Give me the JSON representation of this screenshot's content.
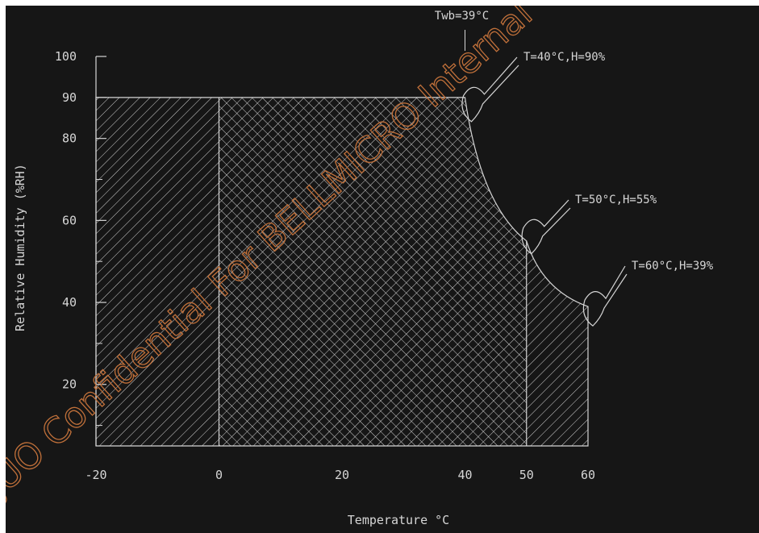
{
  "chart_data": {
    "type": "area",
    "xlabel": "Temperature °C",
    "ylabel": "Relative Humidity (%RH)",
    "xlim": [
      -20,
      60
    ],
    "ylim": [
      5,
      100
    ],
    "x_ticks": [
      -20,
      0,
      20,
      40,
      50,
      60
    ],
    "y_ticks": [
      100,
      90,
      80,
      60,
      40,
      20
    ],
    "regions": [
      {
        "name": "",
        "hatch": "single-diagonal",
        "x_range": [
          -20,
          60
        ],
        "boundary": [
          [
            -20,
            90
          ],
          [
            40,
            90
          ],
          [
            50,
            55
          ],
          [
            60,
            39
          ],
          [
            60,
            5
          ],
          [
            -20,
            5
          ]
        ]
      },
      {
        "name": "",
        "hatch": "cross-hatch",
        "x_range": [
          0,
          50
        ],
        "boundary": [
          [
            0,
            90
          ],
          [
            40,
            90
          ],
          [
            50,
            55
          ],
          [
            50,
            5
          ],
          [
            0,
            5
          ]
        ]
      }
    ],
    "annotations": [
      {
        "text": "Twb=39°C",
        "x": 40,
        "y": 100
      },
      {
        "text": "T=40°C,H=90%",
        "x": 40,
        "y": 90
      },
      {
        "text": "T=50°C,H=55%",
        "x": 50,
        "y": 55
      },
      {
        "text": "T=60°C,H=39%",
        "x": 60,
        "y": 39
      }
    ]
  },
  "watermark": "JUO Confidential For BELLMICRO Internal Use",
  "colors": {
    "background": "#161616",
    "foreground": "#d6d6d6",
    "watermark": "#c0703a"
  }
}
